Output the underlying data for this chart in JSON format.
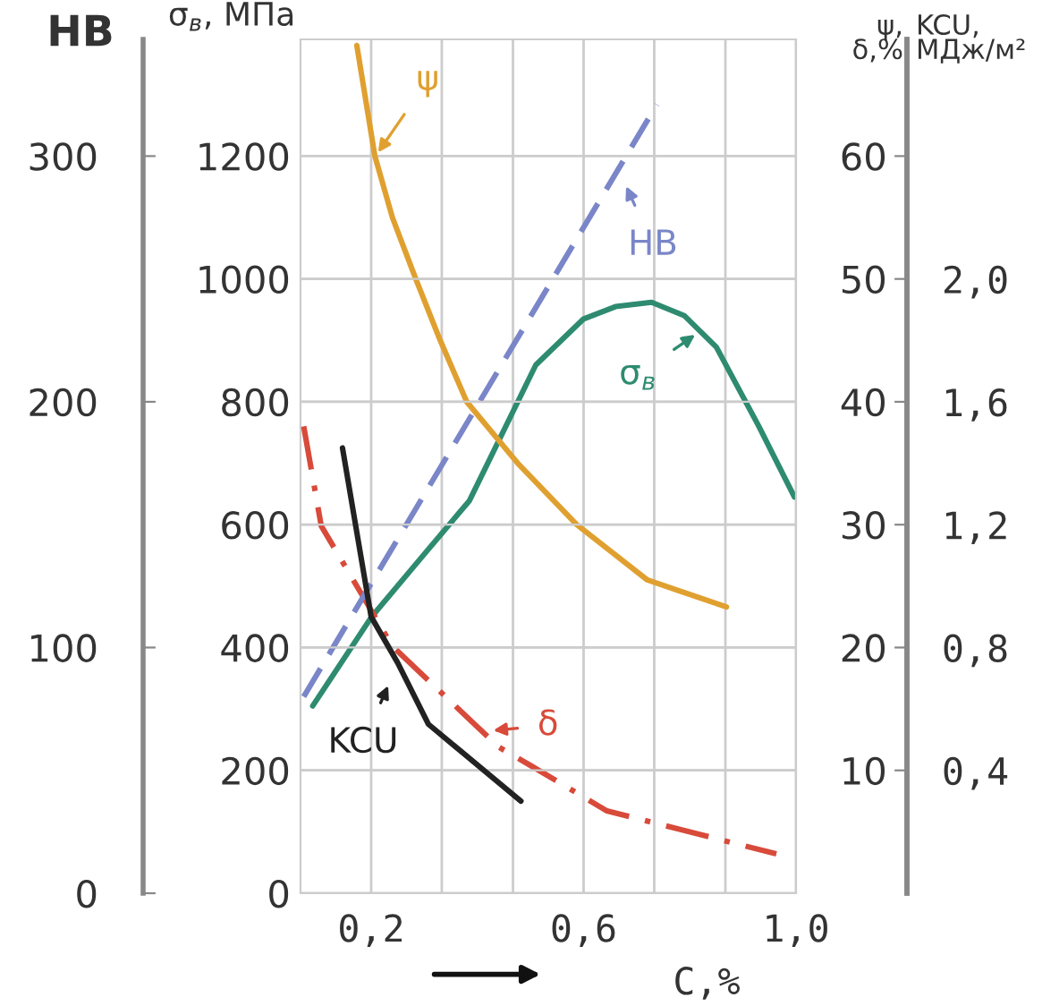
{
  "chart_data": [
    {
      "type": "line",
      "xlabel": "C,%",
      "ylabel": "σ$_{в}$, МПа",
      "y2label": "ψ,\nδ,%",
      "y3label": "HB",
      "xlim": [
        0.067,
        1.0
      ],
      "xticks": [
        {
          "value": 0.2,
          "label": "0,2"
        },
        {
          "value": 0.333,
          "label": null
        },
        {
          "value": 0.467,
          "label": null
        },
        {
          "value": 0.6,
          "label": "0,6"
        },
        {
          "value": 0.733,
          "label": null
        },
        {
          "value": 0.867,
          "label": null
        },
        {
          "value": 1.0,
          "label": "1,0"
        }
      ],
      "ylim": [
        0,
        1390
      ],
      "yticks": [
        0,
        200,
        400,
        600,
        800,
        1000,
        1200
      ],
      "y2lim": [
        0,
        69.5
      ],
      "y2ticks": [
        10,
        20,
        30,
        40,
        50,
        60
      ],
      "y3lim": [
        0,
        347.5
      ],
      "y3ticks": [
        0,
        100,
        200,
        300
      ],
      "grid": true,
      "series": [
        {
          "color": "#e0a030",
          "axis": "y2",
          "line_style": "solid",
          "x": [
            0.173,
            0.207,
            0.24,
            0.284,
            0.33,
            0.38,
            0.476,
            0.587,
            0.72,
            0.869
          ],
          "values": [
            69,
            60,
            55,
            50,
            45,
            40,
            35,
            30,
            25.5,
            23.3
          ]
        },
        {
          "color": "#7a86c8",
          "axis": "y3",
          "line_style": "dashed",
          "x": [
            0.073,
            0.738
          ],
          "values": [
            80,
            321
          ]
        },
        {
          "color": "#2e8b70",
          "axis": "y",
          "line_style": "solid",
          "x": [
            0.09,
            0.2,
            0.3,
            0.385,
            0.51,
            0.6,
            0.66,
            0.728,
            0.79,
            0.85,
            0.93,
            0.997
          ],
          "values": [
            305,
            449,
            552,
            639,
            860,
            935,
            955,
            962,
            940,
            889,
            760,
            645
          ]
        },
        {
          "color": "#d84a3a",
          "axis": "y2",
          "line_style": "dashdot",
          "x": [
            0.073,
            0.106,
            0.24,
            0.44,
            0.5,
            0.644,
            0.963
          ],
          "values": [
            38,
            29.9,
            20.1,
            11.9,
            10.4,
            6.7,
            3.2
          ]
        }
      ],
      "annotations": [
        {
          "text": "ψ",
          "x": 0.213,
          "y": 1206
        },
        "HB",
        {
          "text": "σ$_{в}$",
          "x": 0.81,
          "y": 909
        },
        {
          "text": "δ",
          "x": 0.43,
          "y": 265
        }
      ]
    },
    {
      "type": "line",
      "ylabel": "KCU,\nМДж/м²",
      "tick_labels": "y",
      "xlim": [
        0.067,
        1.0
      ],
      "ylim": [
        0,
        2.78
      ],
      "yticks": [
        {
          "value": 0.4,
          "label": "0,4"
        },
        {
          "value": 0.8,
          "label": "0,8"
        },
        {
          "value": 1.2,
          "label": "1,2"
        },
        {
          "value": 1.6,
          "label": "1,6"
        },
        {
          "value": 2.0,
          "label": "2,0"
        }
      ],
      "series": [
        {
          "color": "#222222",
          "line_style": "solid",
          "x": [
            0.146,
            0.2,
            0.25,
            0.308,
            0.482
          ],
          "values": [
            1.45,
            0.9,
            0.75,
            0.55,
            0.3
          ]
        }
      ],
      "annotations": [
        "KCU"
      ]
    }
  ]
}
